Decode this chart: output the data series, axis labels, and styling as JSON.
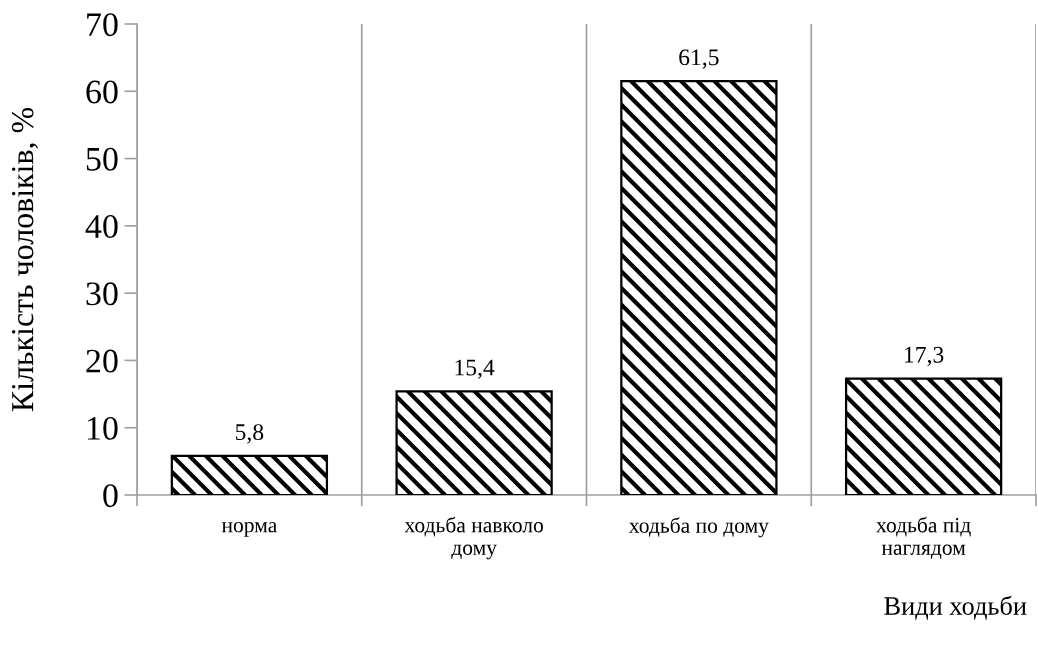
{
  "chart_data": {
    "type": "bar",
    "categories": [
      "норма",
      "ходьба навколо\nдому",
      "ходьба по дому",
      "ходьба під\nнаглядом"
    ],
    "values": [
      5.8,
      15.4,
      61.5,
      17.3
    ],
    "value_labels": [
      "5,8",
      "15,4",
      "61,5",
      "17,3"
    ],
    "color": "#000000",
    "ylabel": "Кількість чоловіків, %",
    "xlabel": "Види ходьби",
    "ylim": [
      0,
      70
    ],
    "yticks": [
      0,
      10,
      20,
      30,
      40,
      50,
      60,
      70
    ],
    "grid": "x",
    "legend": false
  }
}
